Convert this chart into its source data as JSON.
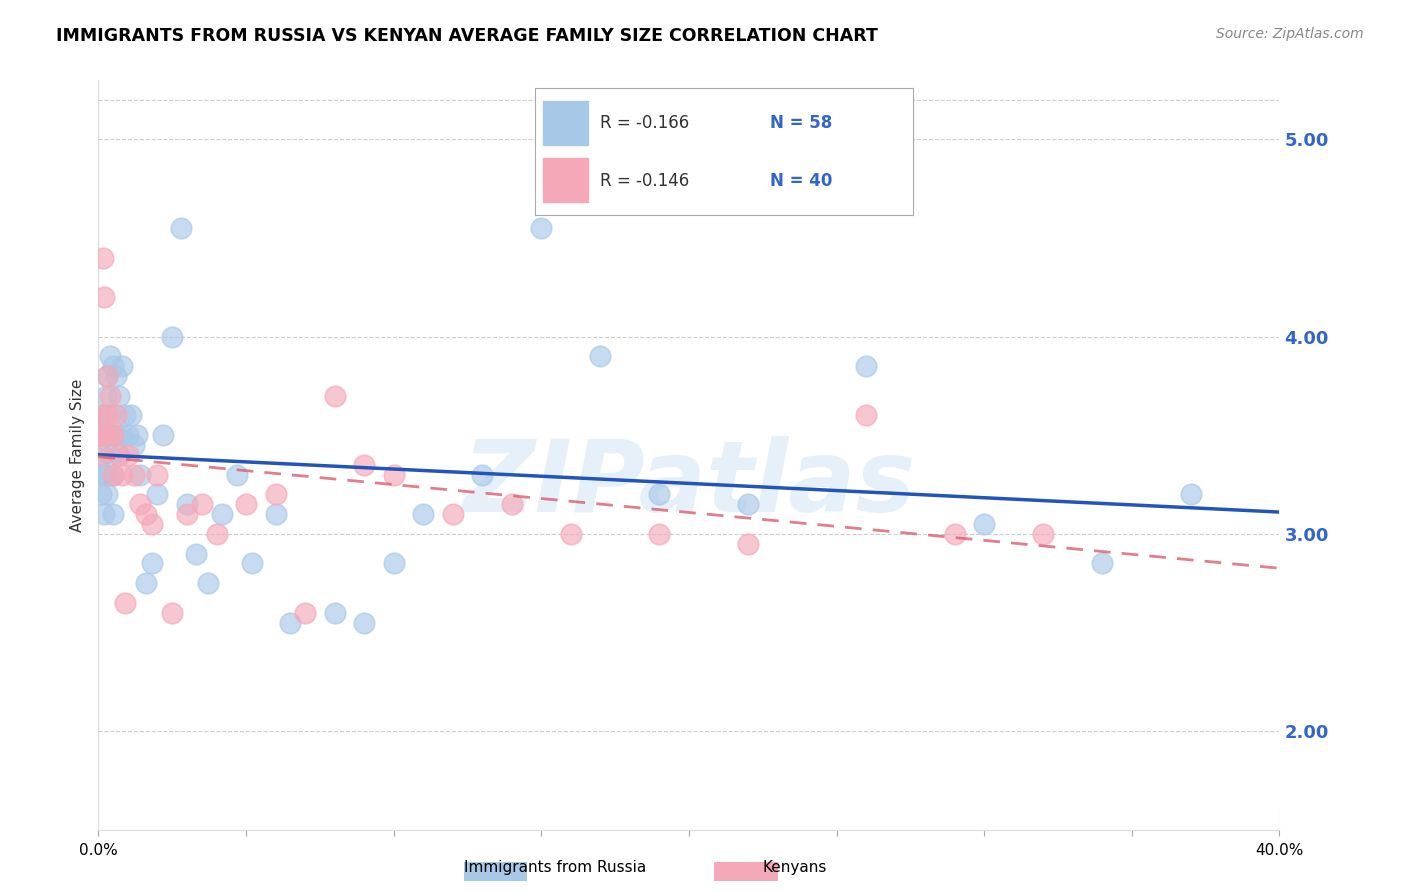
{
  "title": "IMMIGRANTS FROM RUSSIA VS KENYAN AVERAGE FAMILY SIZE CORRELATION CHART",
  "source": "Source: ZipAtlas.com",
  "ylabel": "Average Family Size",
  "right_yticks": [
    2.0,
    3.0,
    4.0,
    5.0
  ],
  "xmin": 0.0,
  "xmax": 0.4,
  "ymin": 1.5,
  "ymax": 5.3,
  "legend_r_blue": "R = -0.166",
  "legend_n_blue": "N = 58",
  "legend_r_pink": "R = -0.146",
  "legend_n_pink": "N = 40",
  "legend_labels": [
    "Immigrants from Russia",
    "Kenyans"
  ],
  "watermark": "ZIPatlas",
  "blue_scatter_x": [
    0.0005,
    0.001,
    0.001,
    0.0015,
    0.002,
    0.002,
    0.002,
    0.0025,
    0.003,
    0.003,
    0.003,
    0.003,
    0.004,
    0.004,
    0.004,
    0.005,
    0.005,
    0.005,
    0.005,
    0.006,
    0.006,
    0.007,
    0.007,
    0.008,
    0.008,
    0.009,
    0.01,
    0.011,
    0.012,
    0.013,
    0.014,
    0.016,
    0.018,
    0.02,
    0.022,
    0.025,
    0.028,
    0.03,
    0.033,
    0.037,
    0.042,
    0.047,
    0.052,
    0.06,
    0.065,
    0.08,
    0.09,
    0.1,
    0.11,
    0.13,
    0.15,
    0.17,
    0.19,
    0.22,
    0.26,
    0.3,
    0.34,
    0.37
  ],
  "blue_scatter_y": [
    3.3,
    3.5,
    3.2,
    3.4,
    3.6,
    3.3,
    3.1,
    3.7,
    3.8,
    3.5,
    3.3,
    3.2,
    3.9,
    3.6,
    3.4,
    3.85,
    3.5,
    3.3,
    3.1,
    3.8,
    3.5,
    3.7,
    3.4,
    3.85,
    3.5,
    3.6,
    3.5,
    3.6,
    3.45,
    3.5,
    3.3,
    2.75,
    2.85,
    3.2,
    3.5,
    4.0,
    4.55,
    3.15,
    2.9,
    2.75,
    3.1,
    3.3,
    2.85,
    3.1,
    2.55,
    2.6,
    2.55,
    2.85,
    3.1,
    3.3,
    4.55,
    3.9,
    3.2,
    3.15,
    3.85,
    3.05,
    2.85,
    3.2
  ],
  "pink_scatter_x": [
    0.0005,
    0.001,
    0.001,
    0.0015,
    0.002,
    0.002,
    0.003,
    0.003,
    0.004,
    0.004,
    0.005,
    0.005,
    0.006,
    0.007,
    0.008,
    0.009,
    0.01,
    0.012,
    0.014,
    0.016,
    0.018,
    0.02,
    0.025,
    0.03,
    0.035,
    0.04,
    0.05,
    0.06,
    0.07,
    0.08,
    0.09,
    0.1,
    0.12,
    0.14,
    0.16,
    0.19,
    0.22,
    0.26,
    0.29,
    0.32
  ],
  "pink_scatter_y": [
    3.5,
    3.6,
    3.4,
    4.4,
    4.2,
    3.5,
    3.8,
    3.6,
    3.7,
    3.5,
    3.5,
    3.3,
    3.6,
    3.4,
    3.3,
    2.65,
    3.4,
    3.3,
    3.15,
    3.1,
    3.05,
    3.3,
    2.6,
    3.1,
    3.15,
    3.0,
    3.15,
    3.2,
    2.6,
    3.7,
    3.35,
    3.3,
    3.1,
    3.15,
    3.0,
    3.0,
    2.95,
    3.6,
    3.0,
    3.0
  ],
  "blue_color": "#a8c8e8",
  "pink_color": "#f4a8b8",
  "blue_line_color": "#2255bb",
  "pink_line_color": "#dd6677",
  "grid_color": "#cccccc",
  "right_axis_color": "#3366cc",
  "text_dark": "#333333",
  "text_blue": "#3366cc",
  "title_fontsize": 12.5,
  "source_fontsize": 10
}
